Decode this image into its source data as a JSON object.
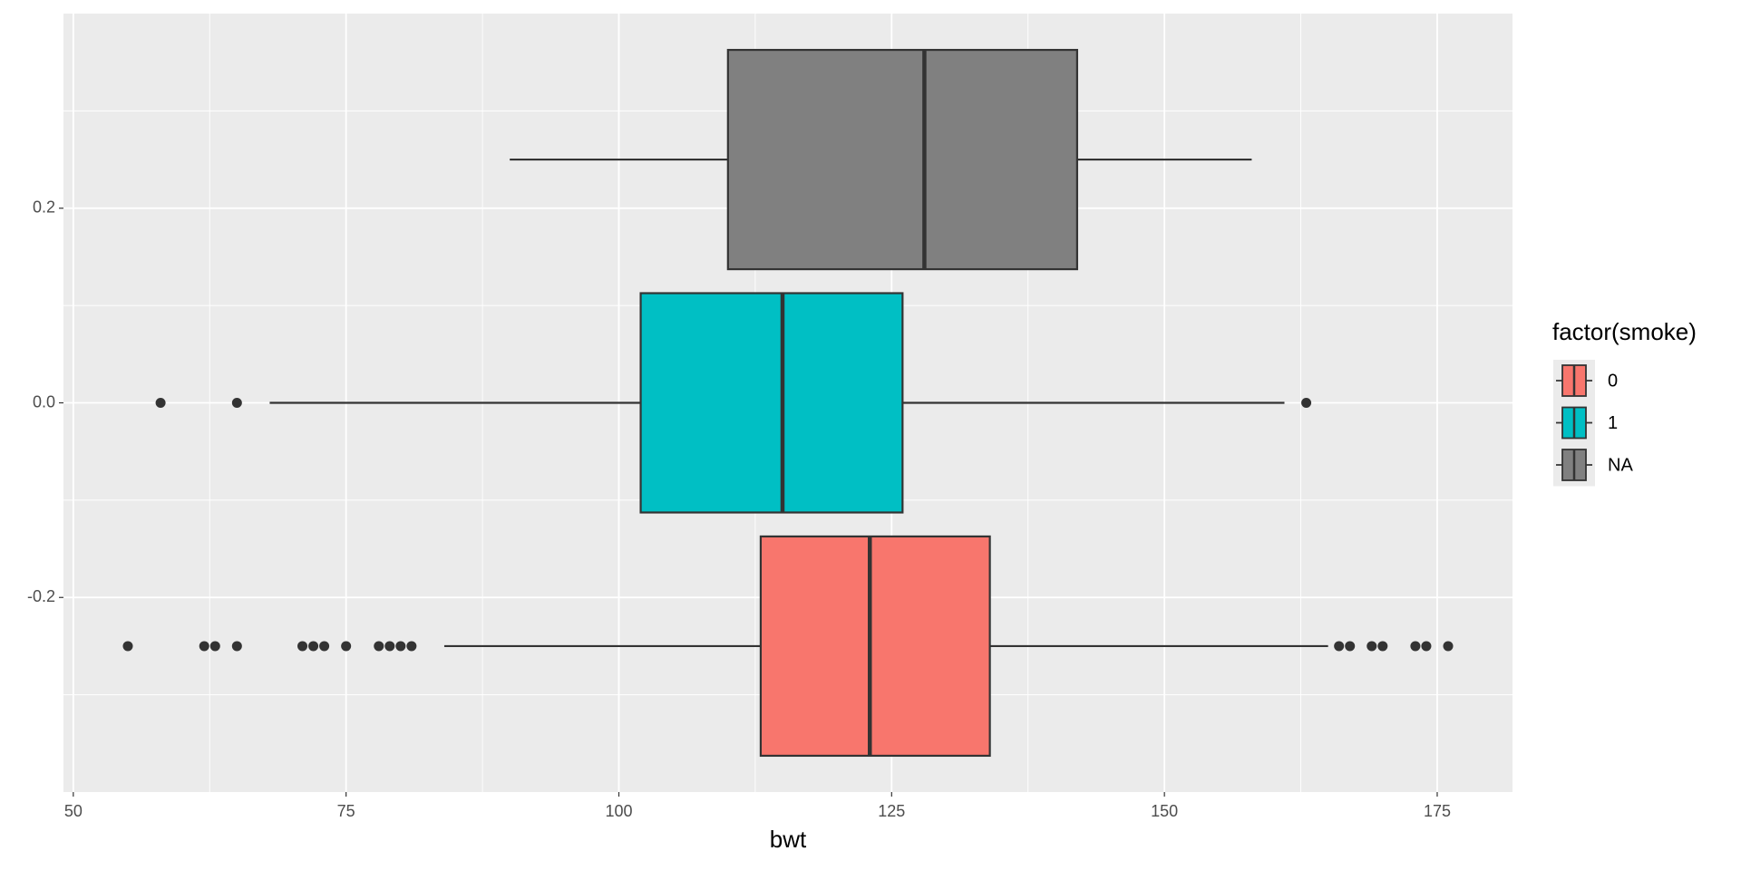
{
  "chart_data": {
    "type": "boxplot",
    "orientation": "horizontal",
    "x_label": "bwt",
    "xlim": [
      49.1,
      181.9
    ],
    "xticks": [
      50,
      75,
      100,
      125,
      150,
      175
    ],
    "ylim": [
      -0.4,
      0.4
    ],
    "yticks": [
      -0.2,
      {
        "value": 0,
        "label": "0.0"
      },
      0.2
    ],
    "grid": true,
    "legend_title": "factor(smoke)",
    "legend_position": "right",
    "series": [
      {
        "name": "0",
        "color": "#F8766D",
        "position": -0.25,
        "whisker_low": 84,
        "q1": 113,
        "median": 123,
        "q3": 134,
        "whisker_high": 165,
        "outliers": [
          55,
          62,
          63,
          65,
          71,
          72,
          73,
          75,
          78,
          79,
          80,
          81,
          166,
          167,
          169,
          170,
          173,
          174,
          176
        ]
      },
      {
        "name": "1",
        "color": "#00BFC4",
        "position": 0,
        "whisker_low": 68,
        "q1": 102,
        "median": 115,
        "q3": 126,
        "whisker_high": 161,
        "outliers": [
          58,
          65,
          163
        ]
      },
      {
        "name": "NA",
        "color": "#808080",
        "position": 0.25,
        "whisker_low": 90,
        "q1": 110,
        "median": 128,
        "q3": 142,
        "whisker_high": 158,
        "outliers": []
      }
    ]
  }
}
